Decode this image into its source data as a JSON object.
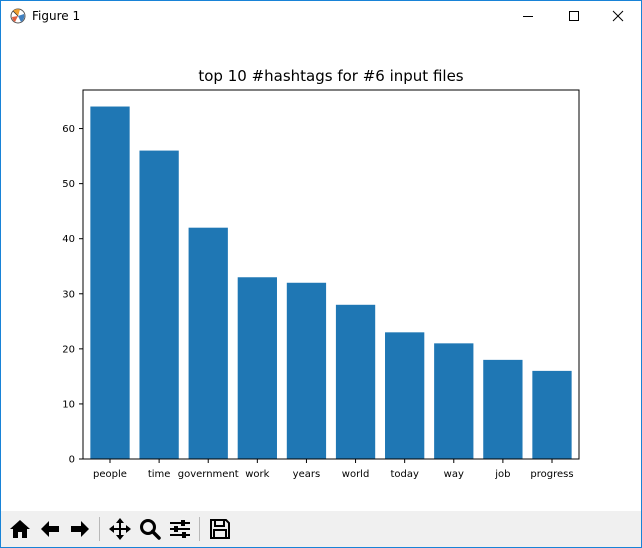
{
  "window": {
    "title": "Figure 1"
  },
  "toolbar": {
    "buttons": [
      {
        "name": "home-icon"
      },
      {
        "name": "back-arrow-icon"
      },
      {
        "name": "forward-arrow-icon"
      },
      {
        "name": "pan-icon"
      },
      {
        "name": "zoom-icon"
      },
      {
        "name": "configure-subplots-icon"
      },
      {
        "name": "save-icon"
      }
    ]
  },
  "chart_data": {
    "type": "bar",
    "title": "top 10 #hashtags for #6 input files",
    "categories": [
      "people",
      "time",
      "government",
      "work",
      "years",
      "world",
      "today",
      "way",
      "job",
      "progress"
    ],
    "values": [
      64,
      56,
      42,
      33,
      32,
      28,
      23,
      21,
      18,
      16
    ],
    "xlabel": "",
    "ylabel": "",
    "ylim": [
      0,
      67
    ],
    "yticks": [
      0,
      10,
      20,
      30,
      40,
      50,
      60
    ],
    "grid": false,
    "colors": {
      "bar": "#1f77b4"
    }
  }
}
